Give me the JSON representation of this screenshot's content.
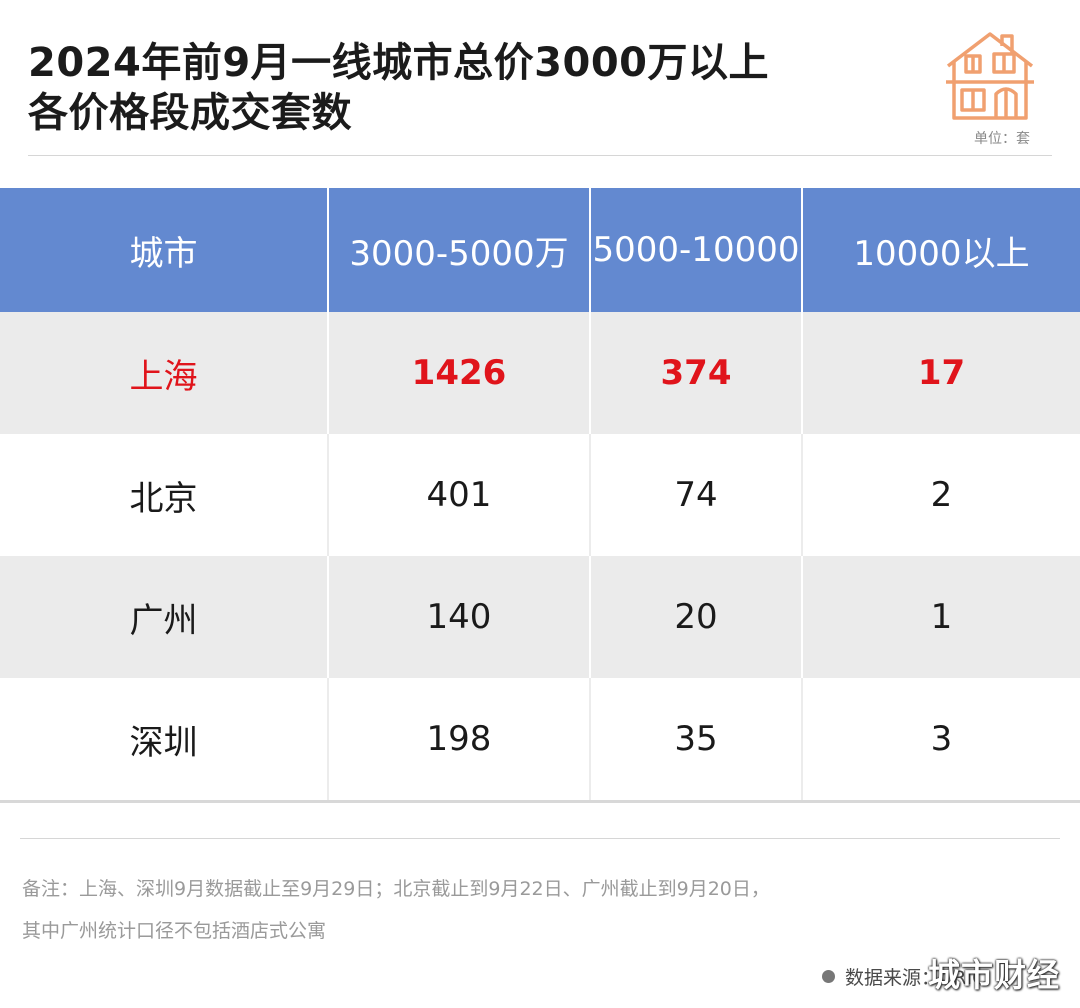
{
  "title_line1": "2024年前9月一线城市总价3000万以上",
  "title_line2": "各价格段成交套数",
  "unit": "单位：套",
  "colors": {
    "header_bg": "#6389d0",
    "highlight": "#e0141b",
    "icon": "#f0a070"
  },
  "icon": "house-icon",
  "chart_data": {
    "type": "table",
    "columns": [
      "城市",
      "3000-5000万",
      "5000-10000",
      "10000以上"
    ],
    "rows": [
      {
        "city": "上海",
        "v1": "1426",
        "v2": "374",
        "v3": "17"
      },
      {
        "city": "北京",
        "v1": "401",
        "v2": "74",
        "v3": "2"
      },
      {
        "city": "广州",
        "v1": "140",
        "v2": "20",
        "v3": "1"
      },
      {
        "city": "深圳",
        "v1": "198",
        "v2": "35",
        "v3": "3"
      }
    ]
  },
  "note_line1": "备注：上海、深圳9月数据截止至9月29日；北京截止到9月22日、广州截止到9月20日，",
  "note_line2": "其中广州统计口径不包括酒店式公寓",
  "source": "数据来源：CRIC",
  "brand": "城市财经"
}
